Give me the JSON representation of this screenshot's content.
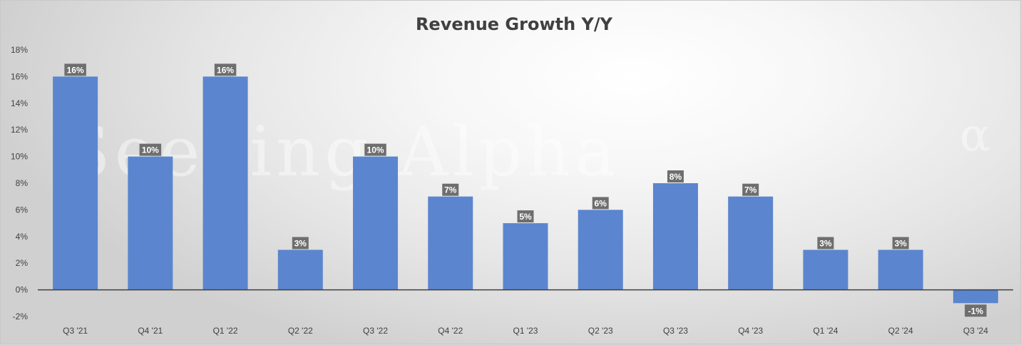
{
  "watermark": "Seeking Alpha",
  "watermark_symbol": "α",
  "colors": {
    "bar": "#5b85cf",
    "data_label_bg": "#6e6e6e",
    "axis_line": "#404040",
    "text": "#404040"
  },
  "chart_data": {
    "type": "bar",
    "title": "Revenue Growth Y/Y",
    "xlabel": "",
    "ylabel": "",
    "categories": [
      "Q3 '21",
      "Q4 '21",
      "Q1 '22",
      "Q2 '22",
      "Q3 '22",
      "Q4 '22",
      "Q1 '23",
      "Q2 '23",
      "Q3 '23",
      "Q4 '23",
      "Q1 '24",
      "Q2 '24",
      "Q3 '24"
    ],
    "values": [
      16,
      10,
      16,
      3,
      10,
      7,
      5,
      6,
      8,
      7,
      3,
      3,
      -1
    ],
    "data_labels": [
      "16%",
      "10%",
      "16%",
      "3%",
      "10%",
      "7%",
      "5%",
      "6%",
      "8%",
      "7%",
      "3%",
      "3%",
      "-1%"
    ],
    "ylim": [
      -2,
      18
    ],
    "y_ticks": [
      -2,
      0,
      2,
      4,
      6,
      8,
      10,
      12,
      14,
      16,
      18
    ],
    "y_tick_labels": [
      "-2%",
      "0%",
      "2%",
      "4%",
      "6%",
      "8%",
      "10%",
      "12%",
      "14%",
      "16%",
      "18%"
    ],
    "grid": false,
    "legend": "none"
  }
}
